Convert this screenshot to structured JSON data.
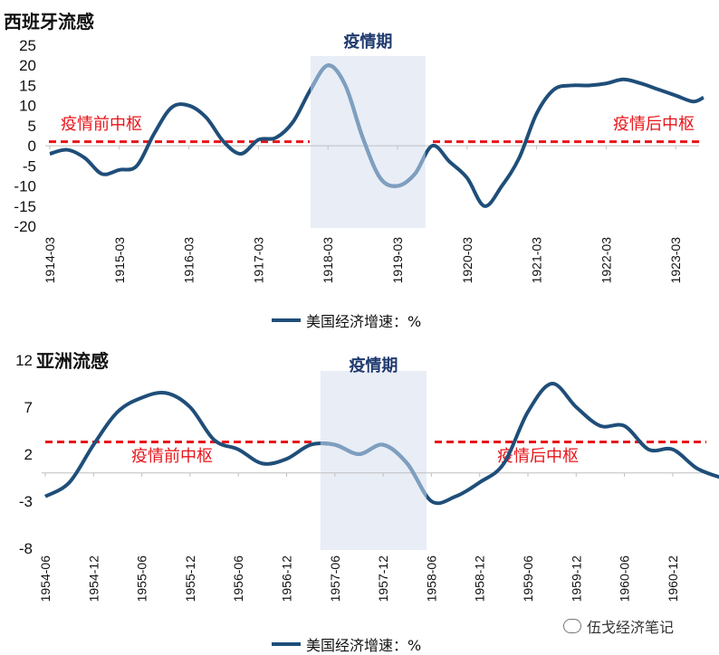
{
  "colors": {
    "line": "#1f4e79",
    "line_light": "#7f9fc0",
    "pivot": "#e8141a",
    "shade": "#e8edf6",
    "axis": "#bfbfbf"
  },
  "legend_label": "美国经济增速：%",
  "watermark": "伍戈经济笔记",
  "chart_data": [
    {
      "type": "line",
      "title": "西班牙流感",
      "period_label": "疫情期",
      "pre_label": "疫情前中枢",
      "post_label": "疫情后中枢",
      "yticks": [
        25,
        20,
        15,
        10,
        5,
        0,
        -5,
        -10,
        -15,
        -20
      ],
      "ylim": [
        -20,
        25
      ],
      "categories": [
        "1914-03",
        "1915-03",
        "1916-03",
        "1917-03",
        "1918-03",
        "1919-03",
        "1920-03",
        "1921-03",
        "1922-03",
        "1923-03"
      ],
      "series": [
        {
          "name": "美国经济增速：%",
          "x": [
            0,
            0.25,
            0.5,
            0.75,
            1.0,
            1.25,
            1.5,
            1.75,
            2.0,
            2.25,
            2.5,
            2.75,
            3.0,
            3.25,
            3.5,
            3.75,
            4.0,
            4.25,
            4.5,
            4.75,
            5.0,
            5.25,
            5.5,
            5.75,
            6.0,
            6.25,
            6.5,
            6.75,
            7.0,
            7.25,
            7.5,
            7.75,
            8.0,
            8.25,
            8.5,
            8.75,
            9.0,
            9.25,
            9.4
          ],
          "values": [
            -2,
            -1,
            -3,
            -7,
            -6,
            -5,
            3,
            9.5,
            10,
            7,
            1,
            -2,
            1.5,
            2,
            6,
            14,
            20,
            15,
            2,
            -8,
            -10,
            -7,
            0,
            -4,
            -8,
            -15,
            -10,
            -3,
            8,
            14,
            15,
            15,
            15.5,
            16.5,
            15.5,
            14,
            12.5,
            11,
            12
          ]
        }
      ],
      "shade_range": [
        3.75,
        5.4
      ],
      "pre_pivot": 1,
      "post_pivot": 1
    },
    {
      "type": "line",
      "title": "亚洲流感",
      "period_label": "疫情期",
      "pre_label": "疫情前中枢",
      "post_label": "疫情后中枢",
      "yticks": [
        12,
        7,
        2,
        -3,
        -8
      ],
      "ylim": [
        -8,
        12
      ],
      "categories": [
        "1954-06",
        "1954-12",
        "1955-06",
        "1955-12",
        "1956-06",
        "1956-12",
        "1957-06",
        "1957-12",
        "1958-06",
        "1958-12",
        "1959-06",
        "1959-12",
        "1960-06",
        "1960-12"
      ],
      "series": [
        {
          "name": "美国经济增速：%",
          "x": [
            0,
            0.5,
            1,
            1.5,
            2,
            2.5,
            3,
            3.5,
            4,
            4.5,
            5,
            5.5,
            6,
            6.5,
            7,
            7.5,
            8,
            8.5,
            9,
            9.5,
            10,
            10.5,
            11,
            11.5,
            12,
            12.5,
            13,
            13.5,
            14
          ],
          "values": [
            -2.5,
            -1,
            3,
            6.5,
            8,
            8.5,
            7,
            3.5,
            2.5,
            1,
            1.5,
            3,
            3,
            2,
            3,
            1,
            -3,
            -2.5,
            -1,
            1,
            6.5,
            9.5,
            7,
            5,
            5,
            2.5,
            2.5,
            0.5,
            -0.5
          ]
        }
      ],
      "shade_range": [
        5.7,
        7.9
      ],
      "pre_pivot": 3.3,
      "post_pivot": 3.3
    }
  ]
}
